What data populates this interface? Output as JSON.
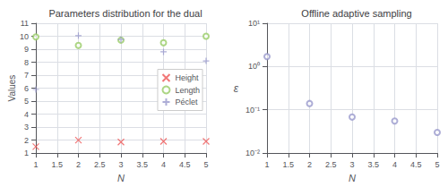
{
  "chart_data": [
    {
      "type": "scatter",
      "title": "Parameters distribution for the dual",
      "x_label": "N",
      "y_label": "Values",
      "series": [
        {
          "name": "Height",
          "color": "#ee5555",
          "marker": "x",
          "x": [
            1,
            2,
            3,
            4,
            5
          ],
          "values": [
            1.5,
            2.0,
            1.85,
            1.9,
            1.9
          ]
        },
        {
          "name": "Length",
          "color": "#99cc66",
          "marker": "o",
          "x": [
            1,
            2,
            3,
            4,
            5
          ],
          "values": [
            9.95,
            9.3,
            9.7,
            9.5,
            10.0
          ]
        },
        {
          "name": "Péclet",
          "color": "#9999cc",
          "marker": "+",
          "x": [
            1,
            2,
            3,
            4,
            5
          ],
          "values": [
            5.9,
            10.05,
            9.75,
            8.8,
            8.1
          ]
        }
      ],
      "xlim": [
        1,
        5
      ],
      "xticks": [
        1,
        1.5,
        2,
        2.5,
        3,
        3.5,
        4,
        4.5,
        5
      ],
      "ylim": [
        1,
        11
      ],
      "yticks": [
        1,
        2,
        3,
        4,
        5,
        6,
        7,
        8,
        9,
        10,
        11
      ],
      "grid": true,
      "legend": "right"
    },
    {
      "type": "scatter",
      "title": "Offline adaptive sampling",
      "x_label": "N",
      "y_label": "ε",
      "series": [
        {
          "color": "#9999cc",
          "marker": "o",
          "x": [
            1,
            2,
            3,
            4,
            5
          ],
          "values": [
            1.7,
            0.14,
            0.068,
            0.055,
            0.03
          ]
        }
      ],
      "log": "y",
      "xlim": [
        1,
        5
      ],
      "xticks": [
        1,
        1.5,
        2,
        2.5,
        3,
        3.5,
        4,
        4.5,
        5
      ],
      "ylim": [
        0.01,
        10
      ],
      "yticks": [
        {
          "value": 0.01,
          "label": "10⁻²"
        },
        {
          "value": 0.1,
          "label": "10⁻¹"
        },
        {
          "value": 1,
          "label": "10⁰"
        },
        {
          "value": 10,
          "label": "10¹"
        }
      ],
      "grid": true
    }
  ]
}
